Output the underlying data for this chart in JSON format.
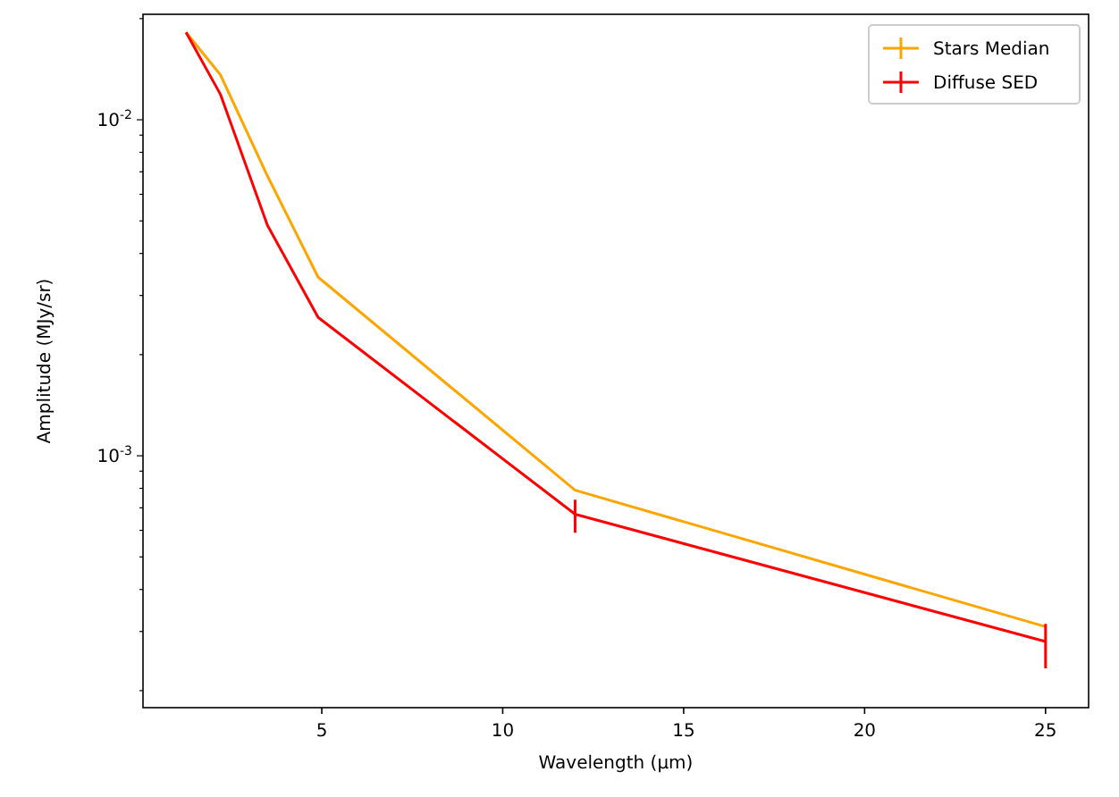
{
  "chart_data": {
    "type": "line",
    "xlabel": "Wavelength (μm)",
    "ylabel": "Amplitude (MJy/sr)",
    "log": "y",
    "legend": "top right",
    "grid": false,
    "x": [
      1.25,
      2.2,
      3.5,
      4.9,
      12,
      25
    ],
    "xlim": [
      0.06,
      26.19
    ],
    "xticks": [
      5,
      10,
      15,
      20,
      25
    ],
    "ylim": [
      0.000178,
      0.0206
    ],
    "yticks": [
      {
        "value": 0.0002,
        "label": null
      },
      {
        "value": 0.0003,
        "label": null
      },
      {
        "value": 0.0004,
        "label": null
      },
      {
        "value": 0.0005,
        "label": null
      },
      {
        "value": 0.0006,
        "label": null
      },
      {
        "value": 0.0007,
        "label": null
      },
      {
        "value": 0.0008,
        "label": null
      },
      {
        "value": 0.0009,
        "label": null
      },
      {
        "value": 0.001,
        "label": "10$^{-3}$"
      },
      {
        "value": 0.002,
        "label": null
      },
      {
        "value": 0.003,
        "label": null
      },
      {
        "value": 0.004,
        "label": null
      },
      {
        "value": 0.005,
        "label": null
      },
      {
        "value": 0.006,
        "label": null
      },
      {
        "value": 0.007,
        "label": null
      },
      {
        "value": 0.008,
        "label": null
      },
      {
        "value": 0.009,
        "label": null
      },
      {
        "value": 0.01,
        "label": "10$^{-2}$"
      },
      {
        "value": 0.02,
        "label": null
      }
    ],
    "series": [
      {
        "name": "Stars Median",
        "color": "#ffa500",
        "values": [
          0.0182,
          0.0136,
          0.0068,
          0.0034,
          0.00079,
          0.00031
        ]
      },
      {
        "name": "Diffuse SED",
        "color": "#ff0000",
        "values": [
          0.0182,
          0.0119,
          0.00485,
          0.00258,
          0.00067,
          0.00028
        ],
        "errors": [
          null,
          null,
          null,
          null,
          [
            0.00059,
            0.00074
          ],
          [
            0.000233,
            0.000316
          ]
        ]
      }
    ]
  }
}
